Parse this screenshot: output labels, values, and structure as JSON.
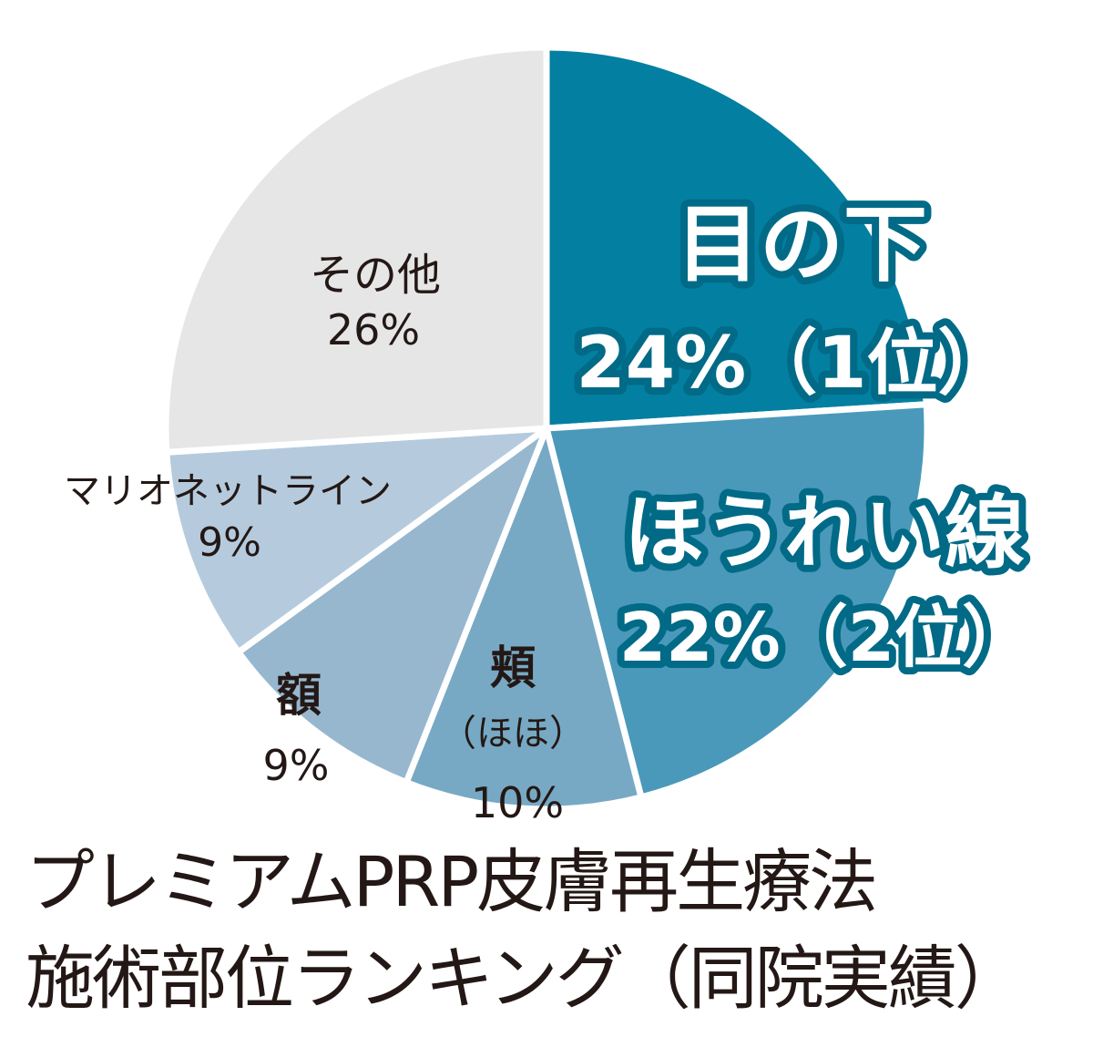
{
  "chart_data": {
    "type": "pie",
    "title_lines": [
      "プレミアムPRP皮膚再生療法",
      "施術部位ランキング（同院実績）"
    ],
    "start": "top",
    "direction": "clockwise",
    "slices": [
      {
        "label": "目の下",
        "value": 24,
        "value_text": "24%（1位）",
        "color": "#037fa1",
        "emphasis": true
      },
      {
        "label": "ほうれい線",
        "value": 22,
        "value_text": "22%（2位）",
        "color": "#4a99ba",
        "emphasis": true
      },
      {
        "label": "頬",
        "sublabel": "（ほほ）",
        "value": 10,
        "value_text": "10%",
        "color": "#77a9c4"
      },
      {
        "label": "額",
        "value": 9,
        "value_text": "9%",
        "color": "#97b7cf"
      },
      {
        "label": "マリオネットライン",
        "value": 9,
        "value_text": "9%",
        "color": "#b5cbdd"
      },
      {
        "label": "その他",
        "value": 26,
        "value_text": "26%",
        "color": "#e6e6e6"
      }
    ],
    "label_outline_color": "#006a87"
  }
}
